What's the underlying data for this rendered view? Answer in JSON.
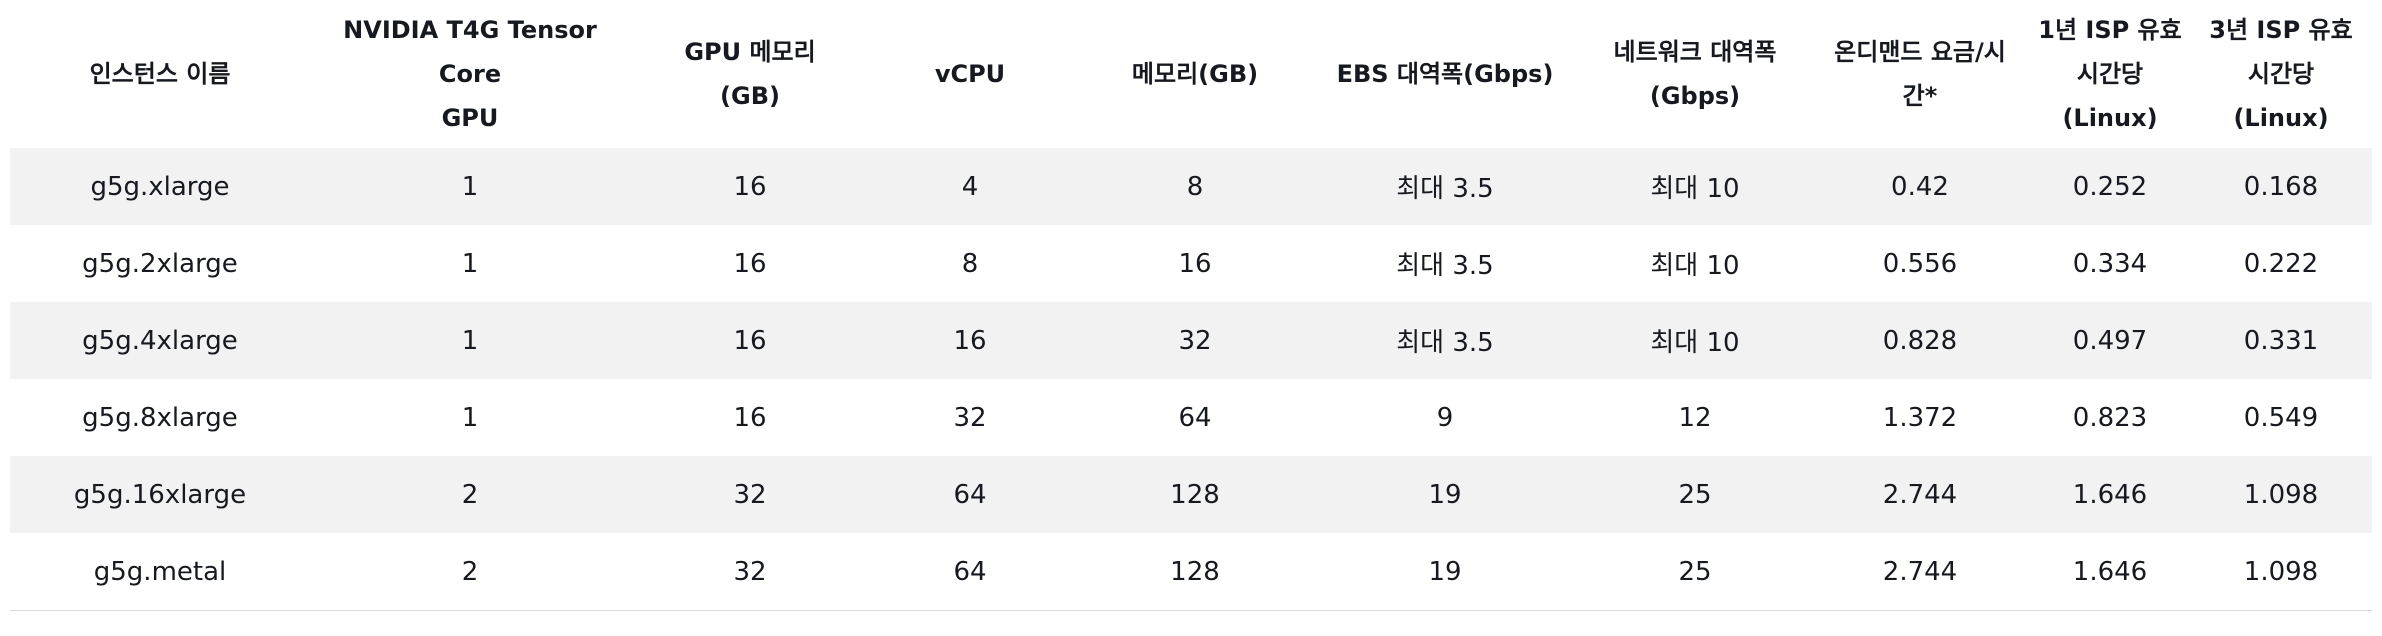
{
  "table": {
    "headers": [
      "인스턴스 이름",
      "NVIDIA T4G Tensor Core\nGPU",
      "GPU 메모리\n(GB)",
      "vCPU",
      "메모리(GB)",
      "EBS 대역폭(Gbps)",
      "네트워크 대역폭\n(Gbps)",
      "온디맨드 요금/시\n간*",
      "1년 ISP 유효\n시간당\n(Linux)",
      "3년 ISP 유효\n시간당\n(Linux)"
    ],
    "rows": [
      [
        "g5g.xlarge",
        "1",
        "16",
        "4",
        "8",
        "최대 3.5",
        "최대 10",
        "0.42",
        "0.252",
        "0.168"
      ],
      [
        "g5g.2xlarge",
        "1",
        "16",
        "8",
        "16",
        "최대 3.5",
        "최대 10",
        "0.556",
        "0.334",
        "0.222"
      ],
      [
        "g5g.4xlarge",
        "1",
        "16",
        "16",
        "32",
        "최대 3.5",
        "최대 10",
        "0.828",
        "0.497",
        "0.331"
      ],
      [
        "g5g.8xlarge",
        "1",
        "16",
        "32",
        "64",
        "9",
        "12",
        "1.372",
        "0.823",
        "0.549"
      ],
      [
        "g5g.16xlarge",
        "2",
        "32",
        "64",
        "128",
        "19",
        "25",
        "2.744",
        "1.646",
        "1.098"
      ],
      [
        "g5g.metal",
        "2",
        "32",
        "64",
        "128",
        "19",
        "25",
        "2.744",
        "1.646",
        "1.098"
      ]
    ],
    "row_shading": [
      "shaded",
      "plain",
      "shaded",
      "plain",
      "shaded",
      "plain"
    ]
  }
}
